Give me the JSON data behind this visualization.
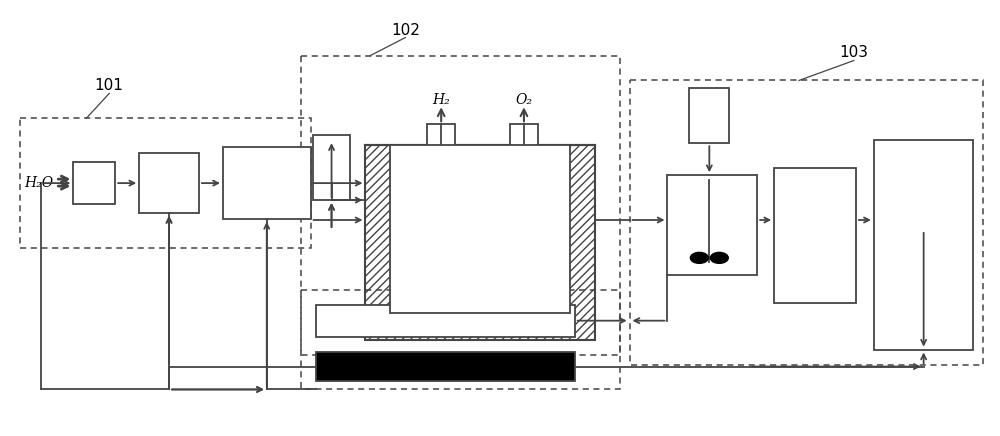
{
  "bg_color": "#ffffff",
  "lc": "#444444",
  "lw": 1.3,
  "h2_label": "H₂",
  "o2_label": "O₂",
  "h2o_label": "H₂O",
  "label_101": "101",
  "label_102": "102",
  "label_103": "103",
  "figsize": [
    10.0,
    4.36
  ],
  "dpi": 100
}
